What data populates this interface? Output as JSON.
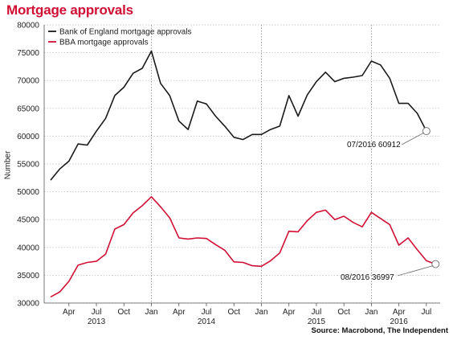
{
  "title": "Mortgage approvals",
  "source": "Source: Macrobond, The Independent",
  "colors": {
    "boe": "#1a1a1a",
    "bba": "#d10f34",
    "title": "#d10f34",
    "grid": "#bbbbbb"
  },
  "chart_data": {
    "type": "line",
    "title": "Mortgage approvals",
    "ylabel": "Number",
    "ylim": [
      30000,
      80000
    ],
    "yticks": [
      30000,
      35000,
      40000,
      45000,
      50000,
      55000,
      60000,
      65000,
      70000,
      75000,
      80000
    ],
    "ytick_labels": [
      "30000",
      "35000",
      "40000",
      "45000",
      "50000",
      "55000",
      "60000",
      "65000",
      "70000",
      "75000",
      "80000"
    ],
    "x_start": "2013-02",
    "xlim_months": [
      -0.7,
      42.5
    ],
    "xticks": [
      {
        "month": 2,
        "label": "Apr"
      },
      {
        "month": 5,
        "label": "Jul"
      },
      {
        "month": 8,
        "label": "Oct"
      },
      {
        "month": 11,
        "label": "Jan"
      },
      {
        "month": 14,
        "label": "Apr"
      },
      {
        "month": 17,
        "label": "Jul"
      },
      {
        "month": 20,
        "label": "Oct"
      },
      {
        "month": 23,
        "label": "Jan"
      },
      {
        "month": 26,
        "label": "Apr"
      },
      {
        "month": 29,
        "label": "Jul"
      },
      {
        "month": 32,
        "label": "Oct"
      },
      {
        "month": 35,
        "label": "Jan"
      },
      {
        "month": 38,
        "label": "Apr"
      },
      {
        "month": 41,
        "label": "Jul"
      }
    ],
    "year_labels": [
      {
        "month": 5,
        "label": "2013"
      },
      {
        "month": 17,
        "label": "2014"
      },
      {
        "month": 29,
        "label": "2015"
      },
      {
        "month": 38,
        "label": "2016"
      }
    ],
    "year_dividers": [
      11,
      23,
      35
    ],
    "grid": true,
    "legend_position": "top-left",
    "series": [
      {
        "name": "Bank of England mortgage approvals",
        "color": "#1a1a1a",
        "x": [
          "2013-02",
          "2013-03",
          "2013-04",
          "2013-05",
          "2013-06",
          "2013-07",
          "2013-08",
          "2013-09",
          "2013-10",
          "2013-11",
          "2013-12",
          "2014-01",
          "2014-02",
          "2014-03",
          "2014-04",
          "2014-05",
          "2014-06",
          "2014-07",
          "2014-08",
          "2014-09",
          "2014-10",
          "2014-11",
          "2014-12",
          "2015-01",
          "2015-02",
          "2015-03",
          "2015-04",
          "2015-05",
          "2015-06",
          "2015-07",
          "2015-08",
          "2015-09",
          "2015-10",
          "2015-11",
          "2015-12",
          "2016-01",
          "2016-02",
          "2016-03",
          "2016-04",
          "2016-05",
          "2016-06",
          "2016-07"
        ],
        "values": [
          52100,
          54100,
          55500,
          58600,
          58400,
          60900,
          63200,
          67300,
          68800,
          71300,
          72200,
          75300,
          69500,
          67300,
          62700,
          61200,
          66300,
          65800,
          63600,
          61800,
          59800,
          59400,
          60300,
          60300,
          61200,
          61800,
          67300,
          63600,
          67400,
          69800,
          71500,
          69800,
          70400,
          70600,
          70900,
          73500,
          72800,
          70400,
          65900,
          65900,
          64100,
          60912
        ]
      },
      {
        "name": "BBA mortgage approvals",
        "color": "#d10f34",
        "x": [
          "2013-02",
          "2013-03",
          "2013-04",
          "2013-05",
          "2013-06",
          "2013-07",
          "2013-08",
          "2013-09",
          "2013-10",
          "2013-11",
          "2013-12",
          "2014-01",
          "2014-02",
          "2014-03",
          "2014-04",
          "2014-05",
          "2014-06",
          "2014-07",
          "2014-08",
          "2014-09",
          "2014-10",
          "2014-11",
          "2014-12",
          "2015-01",
          "2015-02",
          "2015-03",
          "2015-04",
          "2015-05",
          "2015-06",
          "2015-07",
          "2015-08",
          "2015-09",
          "2015-10",
          "2015-11",
          "2015-12",
          "2016-01",
          "2016-02",
          "2016-03",
          "2016-04",
          "2016-05",
          "2016-06",
          "2016-07",
          "2016-08"
        ],
        "values": [
          31100,
          32000,
          33900,
          36800,
          37300,
          37500,
          38800,
          43300,
          44100,
          46200,
          47500,
          49100,
          47300,
          45300,
          41700,
          41500,
          41700,
          41600,
          40500,
          39500,
          37400,
          37300,
          36700,
          36600,
          37600,
          39000,
          42900,
          42800,
          44800,
          46300,
          46700,
          45000,
          45600,
          44500,
          43700,
          46300,
          45200,
          44100,
          40400,
          41700,
          39600,
          37600,
          36997
        ]
      }
    ],
    "annotations": [
      {
        "series": 0,
        "point": "2016-07",
        "text": "07/2016 60912"
      },
      {
        "series": 1,
        "point": "2016-08",
        "text": "08/2016 36997"
      }
    ]
  }
}
